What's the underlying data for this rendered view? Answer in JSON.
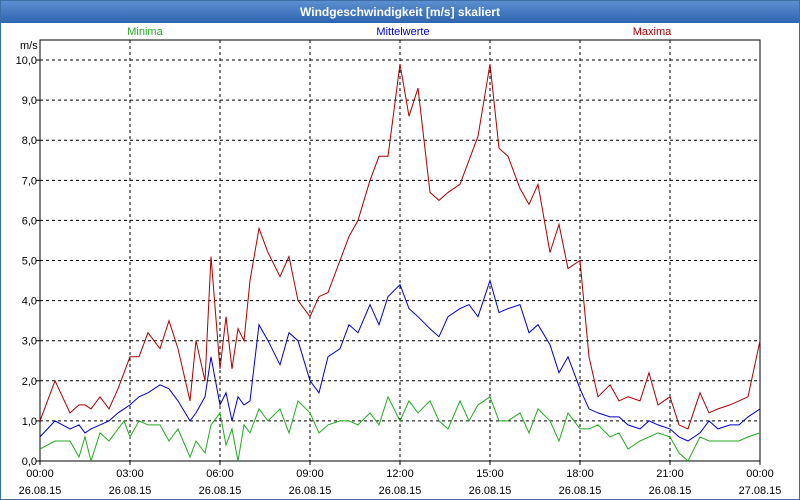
{
  "window": {
    "title": "Windgeschwindigkeit [m/s] skaliert"
  },
  "colors": {
    "minima": "#22aa22",
    "mittel": "#0000cc",
    "maxima": "#aa0000",
    "grid": "#000000"
  },
  "chart_data": {
    "type": "line",
    "title": "Windgeschwindigkeit [m/s] skaliert",
    "ylabel": "m/s",
    "ylim": [
      0,
      10.5
    ],
    "yticks": [
      "0,0",
      "1,0",
      "2,0",
      "3,0",
      "4,0",
      "5,0",
      "6,0",
      "7,0",
      "8,0",
      "9,0",
      "10,0"
    ],
    "xlim": [
      0,
      24
    ],
    "xticks": [
      {
        "time": "00:00",
        "date": "26.08.15"
      },
      {
        "time": "03:00",
        "date": "26.08.15"
      },
      {
        "time": "06:00",
        "date": "26.08.15"
      },
      {
        "time": "09:00",
        "date": "26.08.15"
      },
      {
        "time": "12:00",
        "date": "26.08.15"
      },
      {
        "time": "15:00",
        "date": "26.08.15"
      },
      {
        "time": "18:00",
        "date": "26.08.15"
      },
      {
        "time": "21:00",
        "date": "26.08.15"
      },
      {
        "time": "00:00",
        "date": "27.08.15"
      }
    ],
    "series": [
      {
        "name": "Minima",
        "color": "#22aa22",
        "x": [
          0,
          0.5,
          1,
          1.3,
          1.5,
          1.7,
          2,
          2.3,
          2.6,
          2.8,
          3,
          3.3,
          3.6,
          4,
          4.3,
          4.6,
          5,
          5.2,
          5.5,
          5.7,
          6,
          6.2,
          6.4,
          6.6,
          6.8,
          7,
          7.3,
          7.6,
          8,
          8.3,
          8.6,
          9,
          9.3,
          9.6,
          10,
          10.3,
          10.6,
          11,
          11.3,
          11.6,
          12,
          12.3,
          12.6,
          13,
          13.3,
          13.6,
          14,
          14.3,
          14.6,
          15,
          15.3,
          15.6,
          16,
          16.3,
          16.6,
          17,
          17.3,
          17.6,
          18,
          18.3,
          18.6,
          19,
          19.3,
          19.6,
          20,
          20.3,
          20.6,
          21,
          21.3,
          21.6,
          22,
          22.3,
          22.6,
          23,
          23.3,
          23.6,
          24
        ],
        "values": [
          0.3,
          0.5,
          0.5,
          0.1,
          0.6,
          0.0,
          0.7,
          0.5,
          0.8,
          1.0,
          0.6,
          1.0,
          0.9,
          0.9,
          0.5,
          0.8,
          0.1,
          0.5,
          0.2,
          0.9,
          1.2,
          0.4,
          0.8,
          0.0,
          0.9,
          0.7,
          1.3,
          1.0,
          1.3,
          0.7,
          1.5,
          1.2,
          0.7,
          0.9,
          1.0,
          1.0,
          0.9,
          1.2,
          0.9,
          1.6,
          1.0,
          1.5,
          1.2,
          1.5,
          1.0,
          0.8,
          1.5,
          1.0,
          1.4,
          1.6,
          1.0,
          1.0,
          1.2,
          0.7,
          1.3,
          1.0,
          0.5,
          1.2,
          0.8,
          0.8,
          0.9,
          0.6,
          0.7,
          0.3,
          0.5,
          0.6,
          0.7,
          0.6,
          0.2,
          0.0,
          0.6,
          0.5,
          0.5,
          0.5,
          0.5,
          0.6,
          0.7
        ]
      },
      {
        "name": "Mittelwerte",
        "color": "#0000cc",
        "x": [
          0,
          0.5,
          1,
          1.3,
          1.5,
          1.7,
          2,
          2.3,
          2.6,
          2.8,
          3,
          3.3,
          3.6,
          4,
          4.3,
          4.6,
          5,
          5.2,
          5.5,
          5.7,
          6,
          6.2,
          6.4,
          6.6,
          6.8,
          7,
          7.3,
          7.6,
          8,
          8.3,
          8.6,
          9,
          9.3,
          9.6,
          10,
          10.3,
          10.6,
          11,
          11.3,
          11.6,
          12,
          12.3,
          12.6,
          13,
          13.3,
          13.6,
          14,
          14.3,
          14.6,
          15,
          15.3,
          15.6,
          16,
          16.3,
          16.6,
          17,
          17.3,
          17.6,
          18,
          18.3,
          18.6,
          19,
          19.3,
          19.6,
          20,
          20.3,
          20.6,
          21,
          21.3,
          21.6,
          22,
          22.3,
          22.6,
          23,
          23.3,
          23.6,
          24
        ],
        "values": [
          0.6,
          1.0,
          0.8,
          0.9,
          0.7,
          0.8,
          0.9,
          1.0,
          1.2,
          1.3,
          1.4,
          1.6,
          1.7,
          1.9,
          1.8,
          1.5,
          1.0,
          1.2,
          1.6,
          2.6,
          1.4,
          1.7,
          1.0,
          1.6,
          1.4,
          1.5,
          3.4,
          3.0,
          2.4,
          3.2,
          3.0,
          2.0,
          1.7,
          2.6,
          2.8,
          3.4,
          3.2,
          3.9,
          3.4,
          4.1,
          4.4,
          3.8,
          3.6,
          3.3,
          3.1,
          3.6,
          3.8,
          3.9,
          3.6,
          4.5,
          3.7,
          3.8,
          3.9,
          3.2,
          3.4,
          2.9,
          2.2,
          2.6,
          1.8,
          1.3,
          1.2,
          1.1,
          1.1,
          0.9,
          0.8,
          1.0,
          0.9,
          0.8,
          0.6,
          0.5,
          0.7,
          1.0,
          0.8,
          0.9,
          0.9,
          1.1,
          1.3
        ]
      },
      {
        "name": "Maxima",
        "color": "#aa0000",
        "x": [
          0,
          0.5,
          1,
          1.3,
          1.5,
          1.7,
          2,
          2.3,
          2.6,
          2.8,
          3,
          3.3,
          3.6,
          4,
          4.3,
          4.6,
          5,
          5.2,
          5.5,
          5.7,
          6,
          6.2,
          6.4,
          6.6,
          6.8,
          7,
          7.3,
          7.6,
          8,
          8.3,
          8.6,
          9,
          9.3,
          9.6,
          10,
          10.3,
          10.6,
          11,
          11.3,
          11.6,
          12,
          12.3,
          12.6,
          13,
          13.3,
          13.6,
          14,
          14.3,
          14.6,
          15,
          15.3,
          15.6,
          16,
          16.3,
          16.6,
          17,
          17.3,
          17.6,
          18,
          18.3,
          18.6,
          19,
          19.3,
          19.6,
          20,
          20.3,
          20.6,
          21,
          21.3,
          21.6,
          22,
          22.3,
          22.6,
          23,
          23.3,
          23.6,
          24
        ],
        "values": [
          1.0,
          2.0,
          1.2,
          1.4,
          1.4,
          1.3,
          1.6,
          1.3,
          1.8,
          2.2,
          2.6,
          2.6,
          3.2,
          2.8,
          3.5,
          2.8,
          1.5,
          3.0,
          2.0,
          5.1,
          2.3,
          3.6,
          2.3,
          3.3,
          3.0,
          4.5,
          5.8,
          5.2,
          4.6,
          5.1,
          4.0,
          3.6,
          4.1,
          4.2,
          5.0,
          5.6,
          6.0,
          7.0,
          7.6,
          7.6,
          9.9,
          8.6,
          9.3,
          6.7,
          6.5,
          6.7,
          6.9,
          7.5,
          8.1,
          9.9,
          7.8,
          7.6,
          6.8,
          6.4,
          6.9,
          5.2,
          5.9,
          4.8,
          5.0,
          2.6,
          1.6,
          1.9,
          1.5,
          1.6,
          1.5,
          2.2,
          1.4,
          1.6,
          0.9,
          0.8,
          1.7,
          1.2,
          1.3,
          1.4,
          1.5,
          1.6,
          3.0
        ]
      }
    ]
  }
}
